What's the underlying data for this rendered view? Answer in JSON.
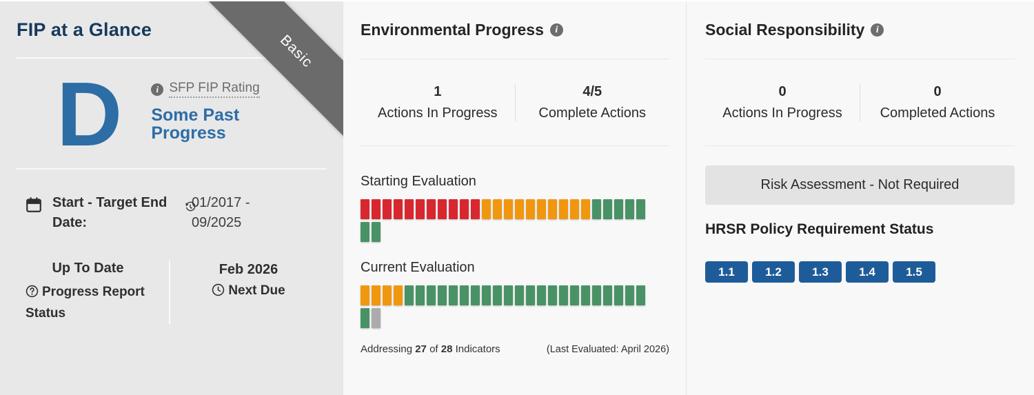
{
  "glance": {
    "title": "FIP at a Glance",
    "ribbon_label": "Basic",
    "rating_letter": "D",
    "rating_link_label": "SFP FIP Rating",
    "rating_text": "Some Past Progress",
    "date_label": "Start - Target End Date:",
    "date_value": "01/2017 - 09/2025",
    "report_status_value": "Up To Date",
    "report_status_label": "Progress Report Status",
    "next_due_value": "Feb 2026",
    "next_due_label": "Next Due"
  },
  "environmental": {
    "title": "Environmental Progress",
    "stats": [
      {
        "value": "1",
        "label": "Actions In Progress"
      },
      {
        "value": "4/5",
        "label": "Complete Actions"
      }
    ],
    "starting_evaluation": {
      "label": "Starting Evaluation",
      "rows": [
        [
          "red",
          "red",
          "red",
          "red",
          "red",
          "red",
          "red",
          "red",
          "red",
          "red",
          "red",
          "orange",
          "orange",
          "orange",
          "orange",
          "orange",
          "orange",
          "orange",
          "orange",
          "orange",
          "orange",
          "green",
          "green",
          "green",
          "green",
          "green"
        ],
        [
          "green",
          "green"
        ]
      ]
    },
    "current_evaluation": {
      "label": "Current Evaluation",
      "rows": [
        [
          "orange",
          "orange",
          "orange",
          "orange",
          "green",
          "green",
          "green",
          "green",
          "green",
          "green",
          "green",
          "green",
          "green",
          "green",
          "green",
          "green",
          "green",
          "green",
          "green",
          "green",
          "green",
          "green",
          "green",
          "green",
          "green",
          "green"
        ],
        [
          "green",
          "gray"
        ]
      ]
    },
    "footer": {
      "addressing_prefix": "Addressing ",
      "addressed_count": "27",
      "of_text": " of ",
      "total_count": "28",
      "indicators_suffix": " Indicators",
      "last_evaluated": "(Last Evaluated: April 2026)"
    }
  },
  "social": {
    "title": "Social Responsibility",
    "stats": [
      {
        "value": "0",
        "label": "Actions In Progress"
      },
      {
        "value": "0",
        "label": "Completed Actions"
      }
    ],
    "risk_button_label": "Risk Assessment - Not Required",
    "hrsr_title": "HRSR Policy Requirement Status",
    "hrsr_badges": [
      "1.1",
      "1.2",
      "1.3",
      "1.4",
      "1.5"
    ]
  },
  "icons": {
    "info_glyph": "i",
    "question_glyph": "?"
  },
  "colors": {
    "red": "#d8272e",
    "orange": "#f0970f",
    "green": "#499266",
    "gray": "#ababab",
    "badge_blue": "#1e5c99",
    "rating_blue": "#2d6da6",
    "title_navy": "#173a5d",
    "ribbon_gray": "#6b6b6b",
    "left_panel_bg": "#e8e8e8",
    "right_panel_bg": "#f8f8f8"
  }
}
